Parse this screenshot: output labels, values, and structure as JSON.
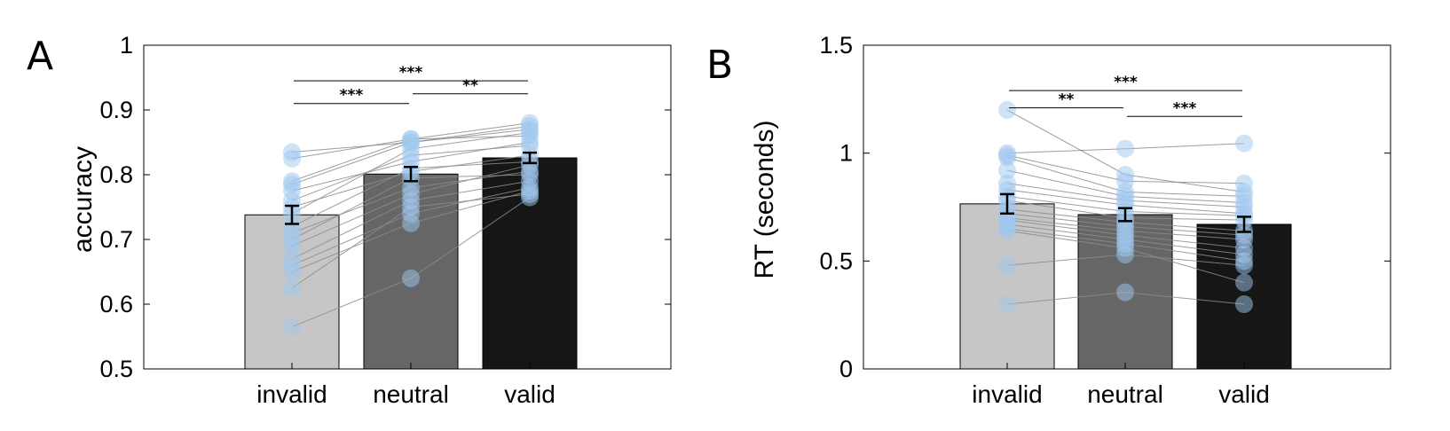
{
  "chart_data": [
    {
      "type": "bar",
      "panel_label": "A",
      "categories": [
        "invalid",
        "neutral",
        "valid"
      ],
      "values": [
        0.738,
        0.801,
        0.826
      ],
      "errors": [
        0.014,
        0.011,
        0.008
      ],
      "bar_colors": [
        "#c6c6c6",
        "#666666",
        "#161616"
      ],
      "ylabel": "accuracy",
      "ylim": [
        0.5,
        1
      ],
      "yticks": [
        0.5,
        0.6,
        0.7,
        0.8,
        0.9,
        1
      ],
      "ytick_labels": [
        "0.5",
        "0.6",
        "0.7",
        "0.8",
        "0.9",
        "1"
      ],
      "subjects": [
        [
          0.835,
          0.85,
          0.87
        ],
        [
          0.825,
          0.855,
          0.86
        ],
        [
          0.79,
          0.855,
          0.88
        ],
        [
          0.785,
          0.85,
          0.875
        ],
        [
          0.775,
          0.82,
          0.85
        ],
        [
          0.76,
          0.83,
          0.845
        ],
        [
          0.75,
          0.805,
          0.83
        ],
        [
          0.74,
          0.84,
          0.865
        ],
        [
          0.72,
          0.81,
          0.82
        ],
        [
          0.71,
          0.78,
          0.805
        ],
        [
          0.7,
          0.795,
          0.8
        ],
        [
          0.69,
          0.77,
          0.815
        ],
        [
          0.67,
          0.76,
          0.79
        ],
        [
          0.66,
          0.74,
          0.78
        ],
        [
          0.65,
          0.725,
          0.775
        ],
        [
          0.625,
          0.75,
          0.77
        ],
        [
          0.565,
          0.64,
          0.765
        ]
      ],
      "significance": [
        {
          "from": 0,
          "to": 1,
          "label": "***",
          "level": 0.91
        },
        {
          "from": 1,
          "to": 2,
          "label": "**",
          "level": 0.925
        },
        {
          "from": 0,
          "to": 2,
          "label": "***",
          "level": 0.945
        }
      ],
      "dot_color": "#9fc7f0",
      "line_color": "#8c8c8c"
    },
    {
      "type": "bar",
      "panel_label": "B",
      "categories": [
        "invalid",
        "neutral",
        "valid"
      ],
      "values": [
        0.765,
        0.715,
        0.67
      ],
      "errors": [
        0.045,
        0.03,
        0.035
      ],
      "bar_colors": [
        "#c6c6c6",
        "#666666",
        "#161616"
      ],
      "ylabel": "RT (seconds)",
      "ylim": [
        0,
        1.5
      ],
      "yticks": [
        0,
        0.5,
        1,
        1.5
      ],
      "ytick_labels": [
        "0",
        "0.5",
        "1",
        "1.5"
      ],
      "subjects": [
        [
          1.2,
          0.9,
          0.82
        ],
        [
          1.0,
          1.02,
          1.045
        ],
        [
          0.99,
          0.87,
          0.86
        ],
        [
          0.98,
          0.82,
          0.8
        ],
        [
          0.92,
          0.8,
          0.77
        ],
        [
          0.86,
          0.78,
          0.75
        ],
        [
          0.83,
          0.76,
          0.72
        ],
        [
          0.8,
          0.73,
          0.71
        ],
        [
          0.78,
          0.7,
          0.69
        ],
        [
          0.74,
          0.68,
          0.64
        ],
        [
          0.72,
          0.66,
          0.62
        ],
        [
          0.7,
          0.64,
          0.6
        ],
        [
          0.69,
          0.62,
          0.56
        ],
        [
          0.67,
          0.6,
          0.53
        ],
        [
          0.65,
          0.58,
          0.5
        ],
        [
          0.64,
          0.56,
          0.4
        ],
        [
          0.48,
          0.53,
          0.48
        ],
        [
          0.3,
          0.355,
          0.3
        ]
      ],
      "significance": [
        {
          "from": 0,
          "to": 1,
          "label": "**",
          "level": 1.21
        },
        {
          "from": 1,
          "to": 2,
          "label": "***",
          "level": 1.17
        },
        {
          "from": 0,
          "to": 2,
          "label": "***",
          "level": 1.29
        }
      ],
      "dot_color": "#9fc7f0",
      "line_color": "#8c8c8c"
    }
  ]
}
